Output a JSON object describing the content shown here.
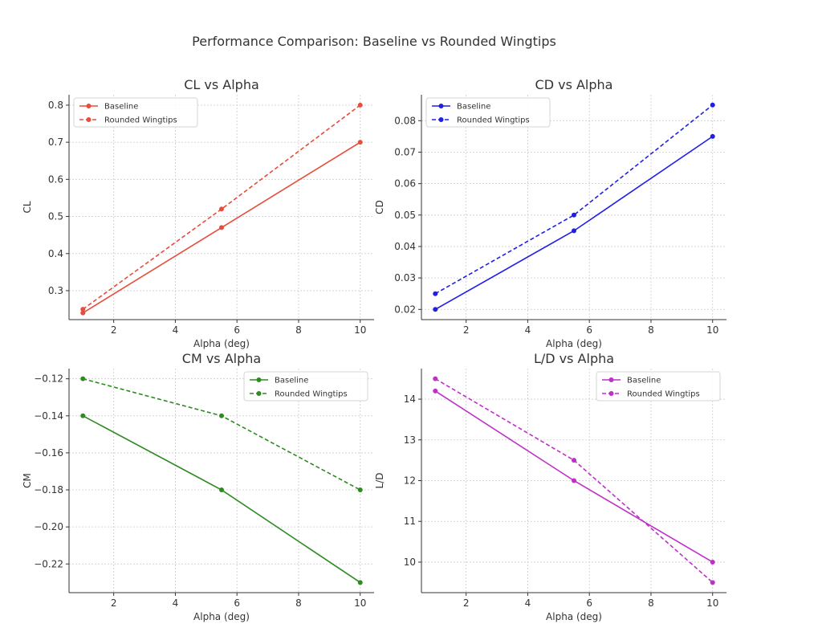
{
  "figure_title": "Performance Comparison: Baseline vs Rounded Wingtips",
  "chart_data": [
    {
      "type": "line",
      "title": "CL vs Alpha",
      "xlabel": "Alpha (deg)",
      "ylabel": "CL",
      "x": [
        1,
        5.5,
        10
      ],
      "xlim": [
        0.55,
        10.45
      ],
      "ylim": [
        0.222,
        0.828
      ],
      "xticks": [
        2,
        4,
        6,
        8,
        10
      ],
      "yticks": [
        0.3,
        0.4,
        0.5,
        0.6,
        0.7,
        0.8
      ],
      "ytick_labels": [
        "0.3",
        "0.4",
        "0.5",
        "0.6",
        "0.7",
        "0.8"
      ],
      "grid": true,
      "legend": "top-left",
      "color": "#e74c3c",
      "series": [
        {
          "name": "Baseline",
          "values": [
            0.24,
            0.47,
            0.7
          ],
          "style": "solid"
        },
        {
          "name": "Rounded Wingtips",
          "values": [
            0.25,
            0.52,
            0.8
          ],
          "style": "dashed"
        }
      ]
    },
    {
      "type": "line",
      "title": "CD vs Alpha",
      "xlabel": "Alpha (deg)",
      "ylabel": "CD",
      "x": [
        1,
        5.5,
        10
      ],
      "xlim": [
        0.55,
        10.45
      ],
      "ylim": [
        0.01675,
        0.08825
      ],
      "xticks": [
        2,
        4,
        6,
        8,
        10
      ],
      "yticks": [
        0.02,
        0.03,
        0.04,
        0.05,
        0.06,
        0.07,
        0.08
      ],
      "ytick_labels": [
        "0.02",
        "0.03",
        "0.04",
        "0.05",
        "0.06",
        "0.07",
        "0.08"
      ],
      "grid": true,
      "legend": "top-left",
      "color": "#1f1fe8",
      "series": [
        {
          "name": "Baseline",
          "values": [
            0.02,
            0.045,
            0.075
          ],
          "style": "solid"
        },
        {
          "name": "Rounded Wingtips",
          "values": [
            0.025,
            0.05,
            0.085
          ],
          "style": "dashed"
        }
      ]
    },
    {
      "type": "line",
      "title": "CM vs Alpha",
      "xlabel": "Alpha (deg)",
      "ylabel": "CM",
      "x": [
        1,
        5.5,
        10
      ],
      "xlim": [
        0.55,
        10.45
      ],
      "ylim": [
        -0.2355,
        -0.1145
      ],
      "xticks": [
        2,
        4,
        6,
        8,
        10
      ],
      "yticks": [
        -0.12,
        -0.14,
        -0.16,
        -0.18,
        -0.2,
        -0.22
      ],
      "ytick_labels": [
        "−0.12",
        "−0.14",
        "−0.16",
        "−0.18",
        "−0.20",
        "−0.22"
      ],
      "grid": true,
      "legend": "top-right",
      "color": "#2e8b22",
      "series": [
        {
          "name": "Baseline",
          "values": [
            -0.14,
            -0.18,
            -0.23
          ],
          "style": "solid"
        },
        {
          "name": "Rounded Wingtips",
          "values": [
            -0.12,
            -0.14,
            -0.18
          ],
          "style": "dashed"
        }
      ]
    },
    {
      "type": "line",
      "title": "L/D vs Alpha",
      "xlabel": "Alpha (deg)",
      "ylabel": "L/D",
      "x": [
        1,
        5.5,
        10
      ],
      "xlim": [
        0.55,
        10.45
      ],
      "ylim": [
        9.25,
        14.75
      ],
      "xticks": [
        2,
        4,
        6,
        8,
        10
      ],
      "yticks": [
        10,
        11,
        12,
        13,
        14
      ],
      "ytick_labels": [
        "10",
        "11",
        "12",
        "13",
        "14"
      ],
      "grid": true,
      "legend": "top-right",
      "color": "#bf2fc9",
      "series": [
        {
          "name": "Baseline",
          "values": [
            14.2,
            12.0,
            10.0
          ],
          "style": "solid"
        },
        {
          "name": "Rounded Wingtips",
          "values": [
            14.5,
            12.5,
            9.5
          ],
          "style": "dashed"
        }
      ]
    }
  ]
}
